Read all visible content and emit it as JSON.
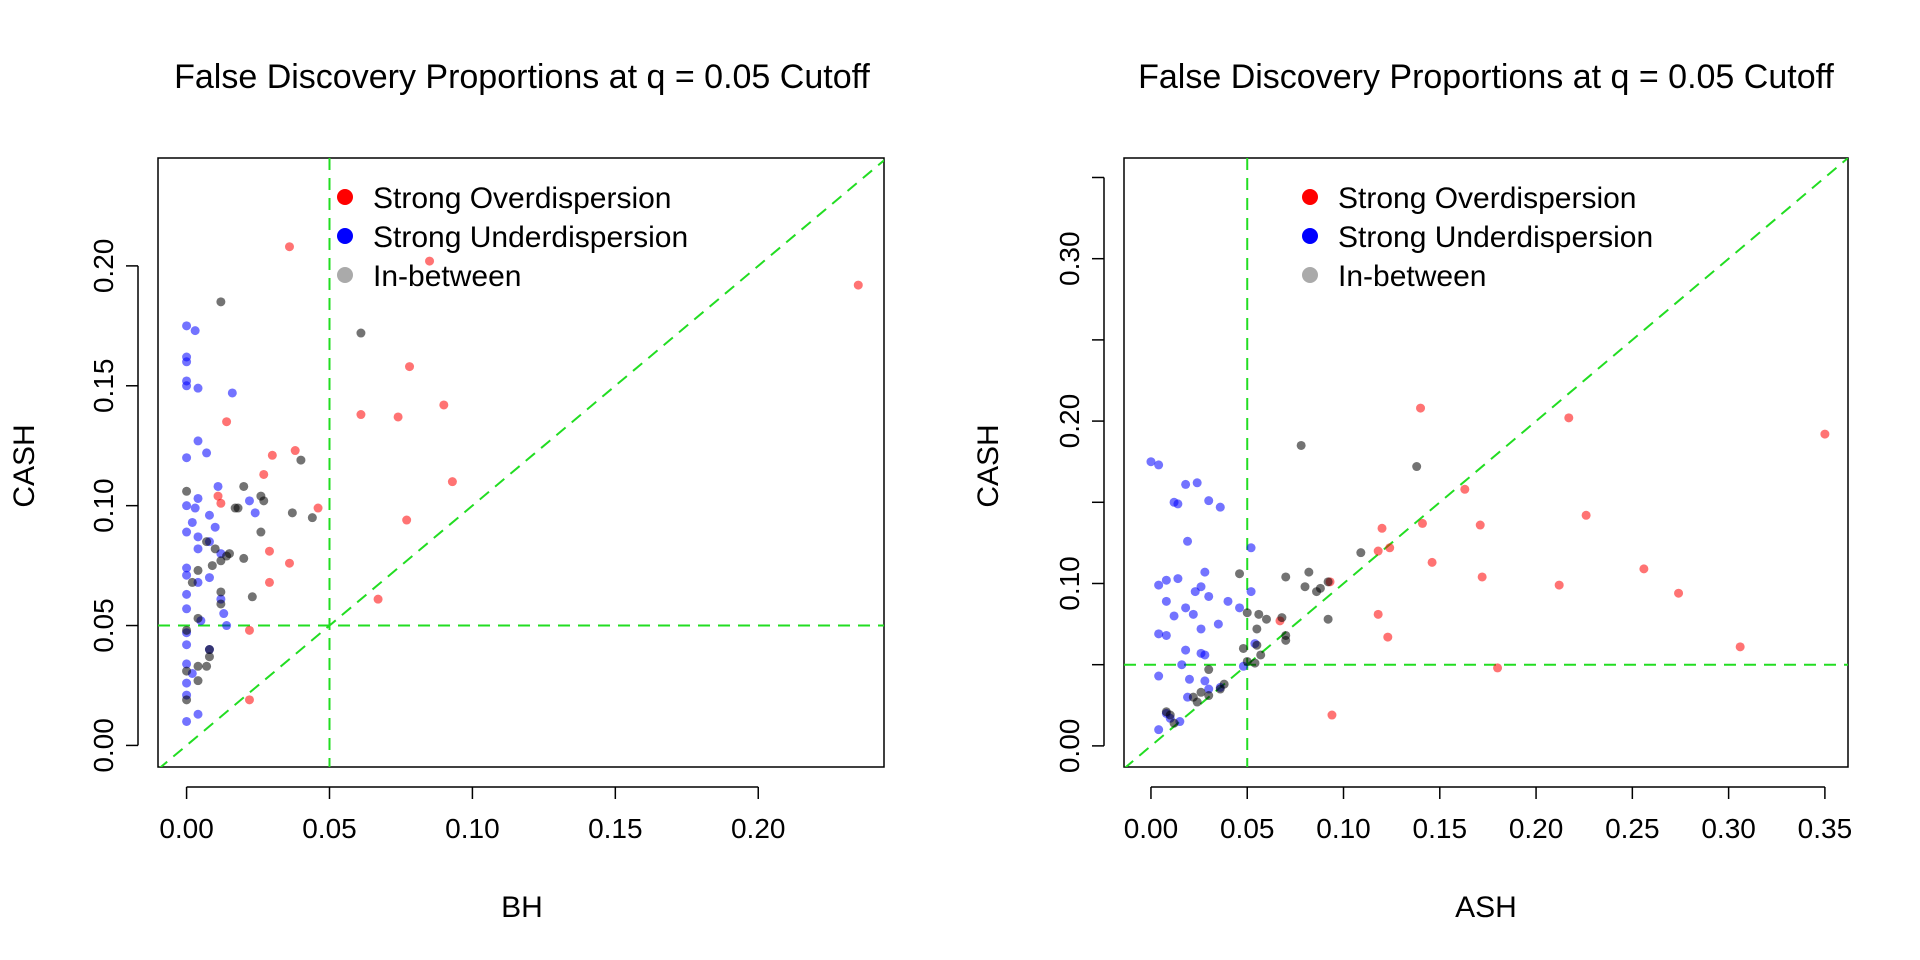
{
  "colors": {
    "strong_over": "#ff0000",
    "strong_under": "#0000ff",
    "between": "#000000",
    "legend_between": "#aaaaaa",
    "reference_lines": "#22dd22"
  },
  "chart_data": [
    {
      "type": "scatter",
      "title": "False Discovery Proportions at q = 0.05 Cutoff",
      "xlabel": "BH",
      "ylabel": "CASH",
      "xlim": [
        -0.01,
        0.244
      ],
      "ylim": [
        -0.009,
        0.245
      ],
      "xticks": [
        0.0,
        0.05,
        0.1,
        0.15,
        0.2
      ],
      "yticks": [
        0.0,
        0.05,
        0.1,
        0.15,
        0.2
      ],
      "xtick_labels": [
        "0.00",
        "0.05",
        "0.10",
        "0.15",
        "0.20"
      ],
      "ytick_labels": [
        "0.00",
        "0.05",
        "0.10",
        "0.15",
        "0.20"
      ],
      "grid": false,
      "legend_position": "top-center",
      "legend": [
        "Strong Overdispersion",
        "Strong Underdispersion",
        "In-between"
      ],
      "reference_lines": {
        "vline": 0.05,
        "hline": 0.05,
        "diagonal": true
      },
      "series": [
        {
          "name": "Strong Overdispersion",
          "points": [
            [
              0.036,
              0.208
            ],
            [
              0.085,
              0.202
            ],
            [
              0.235,
              0.192
            ],
            [
              0.078,
              0.158
            ],
            [
              0.09,
              0.142
            ],
            [
              0.061,
              0.138
            ],
            [
              0.074,
              0.137
            ],
            [
              0.014,
              0.135
            ],
            [
              0.038,
              0.123
            ],
            [
              0.03,
              0.121
            ],
            [
              0.027,
              0.113
            ],
            [
              0.093,
              0.11
            ],
            [
              0.011,
              0.104
            ],
            [
              0.012,
              0.101
            ],
            [
              0.046,
              0.099
            ],
            [
              0.077,
              0.094
            ],
            [
              0.029,
              0.081
            ],
            [
              0.036,
              0.076
            ],
            [
              0.029,
              0.068
            ],
            [
              0.067,
              0.061
            ],
            [
              0.022,
              0.048
            ],
            [
              0.022,
              0.019
            ]
          ]
        },
        {
          "name": "Strong Underdispersion",
          "points": [
            [
              0.0,
              0.175
            ],
            [
              0.003,
              0.173
            ],
            [
              0.0,
              0.162
            ],
            [
              0.0,
              0.16
            ],
            [
              0.0,
              0.152
            ],
            [
              0.0,
              0.15
            ],
            [
              0.004,
              0.149
            ],
            [
              0.016,
              0.147
            ],
            [
              0.004,
              0.127
            ],
            [
              0.007,
              0.122
            ],
            [
              0.0,
              0.12
            ],
            [
              0.011,
              0.108
            ],
            [
              0.004,
              0.103
            ],
            [
              0.022,
              0.102
            ],
            [
              0.0,
              0.1
            ],
            [
              0.003,
              0.099
            ],
            [
              0.008,
              0.096
            ],
            [
              0.024,
              0.097
            ],
            [
              0.002,
              0.093
            ],
            [
              0.01,
              0.091
            ],
            [
              0.0,
              0.089
            ],
            [
              0.004,
              0.087
            ],
            [
              0.008,
              0.085
            ],
            [
              0.004,
              0.082
            ],
            [
              0.012,
              0.08
            ],
            [
              0.0,
              0.074
            ],
            [
              0.0,
              0.071
            ],
            [
              0.008,
              0.07
            ],
            [
              0.004,
              0.068
            ],
            [
              0.0,
              0.063
            ],
            [
              0.012,
              0.061
            ],
            [
              0.013,
              0.055
            ],
            [
              0.0,
              0.057
            ],
            [
              0.005,
              0.052
            ],
            [
              0.0,
              0.047
            ],
            [
              0.014,
              0.05
            ],
            [
              0.0,
              0.042
            ],
            [
              0.008,
              0.04
            ],
            [
              0.0,
              0.034
            ],
            [
              0.002,
              0.03
            ],
            [
              0.0,
              0.026
            ],
            [
              0.0,
              0.021
            ],
            [
              0.004,
              0.013
            ],
            [
              0.0,
              0.01
            ]
          ]
        },
        {
          "name": "In-between",
          "points": [
            [
              0.012,
              0.185
            ],
            [
              0.061,
              0.172
            ],
            [
              0.04,
              0.119
            ],
            [
              0.017,
              0.099
            ],
            [
              0.018,
              0.099
            ],
            [
              0.026,
              0.104
            ],
            [
              0.02,
              0.108
            ],
            [
              0.027,
              0.102
            ],
            [
              0.0,
              0.106
            ],
            [
              0.037,
              0.097
            ],
            [
              0.044,
              0.095
            ],
            [
              0.026,
              0.089
            ],
            [
              0.007,
              0.085
            ],
            [
              0.01,
              0.082
            ],
            [
              0.014,
              0.079
            ],
            [
              0.015,
              0.08
            ],
            [
              0.02,
              0.078
            ],
            [
              0.012,
              0.077
            ],
            [
              0.009,
              0.075
            ],
            [
              0.004,
              0.073
            ],
            [
              0.002,
              0.068
            ],
            [
              0.012,
              0.064
            ],
            [
              0.023,
              0.062
            ],
            [
              0.012,
              0.059
            ],
            [
              0.004,
              0.053
            ],
            [
              0.0,
              0.048
            ],
            [
              0.008,
              0.04
            ],
            [
              0.008,
              0.037
            ],
            [
              0.007,
              0.033
            ],
            [
              0.004,
              0.033
            ],
            [
              0.0,
              0.031
            ],
            [
              0.004,
              0.027
            ],
            [
              0.0,
              0.019
            ]
          ]
        }
      ]
    },
    {
      "type": "scatter",
      "title": "False Discovery Proportions at q = 0.05 Cutoff",
      "xlabel": "ASH",
      "ylabel": "CASH",
      "xlim": [
        -0.014,
        0.362
      ],
      "ylim": [
        -0.013,
        0.362
      ],
      "xticks": [
        0.0,
        0.05,
        0.1,
        0.15,
        0.2,
        0.25,
        0.3,
        0.35
      ],
      "yticks": [
        0.0,
        0.1,
        0.2,
        0.3
      ],
      "xtick_labels": [
        "0.00",
        "0.05",
        "0.10",
        "0.15",
        "0.20",
        "0.25",
        "0.30",
        "0.35"
      ],
      "ytick_labels": [
        "0.00",
        "0.10",
        "0.20",
        "0.30"
      ],
      "minor_yticks": [
        0.05,
        0.15,
        0.25,
        0.35
      ],
      "grid": false,
      "legend_position": "top-center",
      "legend": [
        "Strong Overdispersion",
        "Strong Underdispersion",
        "In-between"
      ],
      "reference_lines": {
        "vline": 0.05,
        "hline": 0.05,
        "diagonal": true
      },
      "series": [
        {
          "name": "Strong Overdispersion",
          "points": [
            [
              0.14,
              0.208
            ],
            [
              0.217,
              0.202
            ],
            [
              0.35,
              0.192
            ],
            [
              0.163,
              0.158
            ],
            [
              0.226,
              0.142
            ],
            [
              0.141,
              0.137
            ],
            [
              0.171,
              0.136
            ],
            [
              0.12,
              0.134
            ],
            [
              0.124,
              0.122
            ],
            [
              0.118,
              0.12
            ],
            [
              0.146,
              0.113
            ],
            [
              0.256,
              0.109
            ],
            [
              0.172,
              0.104
            ],
            [
              0.212,
              0.099
            ],
            [
              0.093,
              0.101
            ],
            [
              0.274,
              0.094
            ],
            [
              0.118,
              0.081
            ],
            [
              0.123,
              0.067
            ],
            [
              0.067,
              0.077
            ],
            [
              0.306,
              0.061
            ],
            [
              0.18,
              0.048
            ],
            [
              0.094,
              0.019
            ]
          ]
        },
        {
          "name": "Strong Underdispersion",
          "points": [
            [
              0.0,
              0.175
            ],
            [
              0.004,
              0.173
            ],
            [
              0.024,
              0.162
            ],
            [
              0.018,
              0.161
            ],
            [
              0.03,
              0.151
            ],
            [
              0.012,
              0.15
            ],
            [
              0.036,
              0.147
            ],
            [
              0.014,
              0.149
            ],
            [
              0.019,
              0.126
            ],
            [
              0.052,
              0.122
            ],
            [
              0.008,
              0.102
            ],
            [
              0.014,
              0.103
            ],
            [
              0.004,
              0.099
            ],
            [
              0.026,
              0.098
            ],
            [
              0.028,
              0.107
            ],
            [
              0.023,
              0.095
            ],
            [
              0.03,
              0.092
            ],
            [
              0.052,
              0.095
            ],
            [
              0.04,
              0.089
            ],
            [
              0.008,
              0.089
            ],
            [
              0.018,
              0.085
            ],
            [
              0.046,
              0.085
            ],
            [
              0.012,
              0.08
            ],
            [
              0.022,
              0.081
            ],
            [
              0.035,
              0.075
            ],
            [
              0.004,
              0.069
            ],
            [
              0.008,
              0.068
            ],
            [
              0.026,
              0.072
            ],
            [
              0.018,
              0.059
            ],
            [
              0.026,
              0.057
            ],
            [
              0.028,
              0.056
            ],
            [
              0.016,
              0.05
            ],
            [
              0.048,
              0.049
            ],
            [
              0.004,
              0.043
            ],
            [
              0.02,
              0.041
            ],
            [
              0.028,
              0.04
            ],
            [
              0.036,
              0.036
            ],
            [
              0.03,
              0.035
            ],
            [
              0.019,
              0.03
            ],
            [
              0.008,
              0.02
            ],
            [
              0.01,
              0.017
            ],
            [
              0.015,
              0.015
            ],
            [
              0.004,
              0.01
            ],
            [
              0.054,
              0.063
            ]
          ]
        },
        {
          "name": "In-between",
          "points": [
            [
              0.078,
              0.185
            ],
            [
              0.138,
              0.172
            ],
            [
              0.109,
              0.119
            ],
            [
              0.082,
              0.107
            ],
            [
              0.046,
              0.106
            ],
            [
              0.07,
              0.104
            ],
            [
              0.092,
              0.101
            ],
            [
              0.088,
              0.097
            ],
            [
              0.086,
              0.095
            ],
            [
              0.08,
              0.098
            ],
            [
              0.05,
              0.082
            ],
            [
              0.056,
              0.081
            ],
            [
              0.06,
              0.078
            ],
            [
              0.068,
              0.079
            ],
            [
              0.092,
              0.078
            ],
            [
              0.055,
              0.072
            ],
            [
              0.07,
              0.065
            ],
            [
              0.07,
              0.068
            ],
            [
              0.055,
              0.062
            ],
            [
              0.048,
              0.06
            ],
            [
              0.057,
              0.056
            ],
            [
              0.05,
              0.052
            ],
            [
              0.054,
              0.051
            ],
            [
              0.03,
              0.047
            ],
            [
              0.038,
              0.038
            ],
            [
              0.036,
              0.035
            ],
            [
              0.026,
              0.033
            ],
            [
              0.022,
              0.03
            ],
            [
              0.03,
              0.031
            ],
            [
              0.024,
              0.027
            ],
            [
              0.01,
              0.019
            ],
            [
              0.008,
              0.021
            ],
            [
              0.012,
              0.014
            ]
          ]
        }
      ]
    }
  ]
}
